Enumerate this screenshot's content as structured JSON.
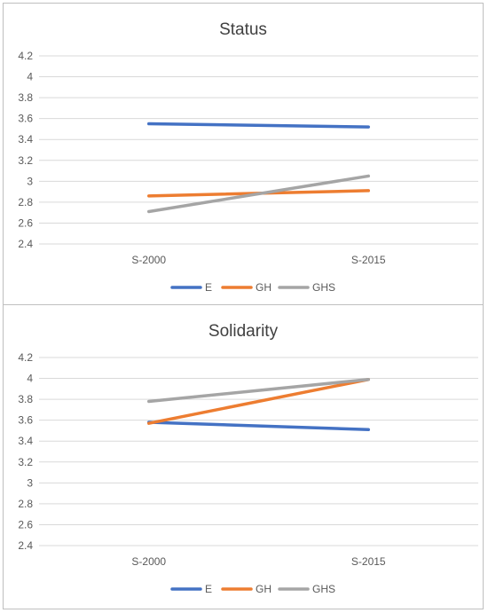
{
  "chart_data": [
    {
      "type": "line",
      "title": "Status",
      "xlabel": "",
      "ylabel": "",
      "categories": [
        "S-2000",
        "S-2015"
      ],
      "yticks": [
        "2.4",
        "2.6",
        "2.8",
        "3",
        "3.2",
        "3.4",
        "3.6",
        "3.8",
        "4",
        "4.2"
      ],
      "ylim": [
        2.4,
        4.2
      ],
      "grid": true,
      "legend": "bottom",
      "series": [
        {
          "name": "E",
          "values": [
            3.55,
            3.52
          ],
          "color": "#4472c4"
        },
        {
          "name": "GH",
          "values": [
            2.86,
            2.91
          ],
          "color": "#ed7d31"
        },
        {
          "name": "GHS",
          "values": [
            2.71,
            3.05
          ],
          "color": "#a5a5a5"
        }
      ]
    },
    {
      "type": "line",
      "title": "Solidarity",
      "xlabel": "",
      "ylabel": "",
      "categories": [
        "S-2000",
        "S-2015"
      ],
      "yticks": [
        "2.4",
        "2.6",
        "2.8",
        "3",
        "3.2",
        "3.4",
        "3.6",
        "3.8",
        "4",
        "4.2"
      ],
      "ylim": [
        2.4,
        4.2
      ],
      "grid": true,
      "legend": "bottom",
      "series": [
        {
          "name": "E",
          "values": [
            3.58,
            3.51
          ],
          "color": "#4472c4"
        },
        {
          "name": "GH",
          "values": [
            3.57,
            3.99
          ],
          "color": "#ed7d31"
        },
        {
          "name": "GHS",
          "values": [
            3.78,
            3.99
          ],
          "color": "#a5a5a5"
        }
      ]
    }
  ]
}
